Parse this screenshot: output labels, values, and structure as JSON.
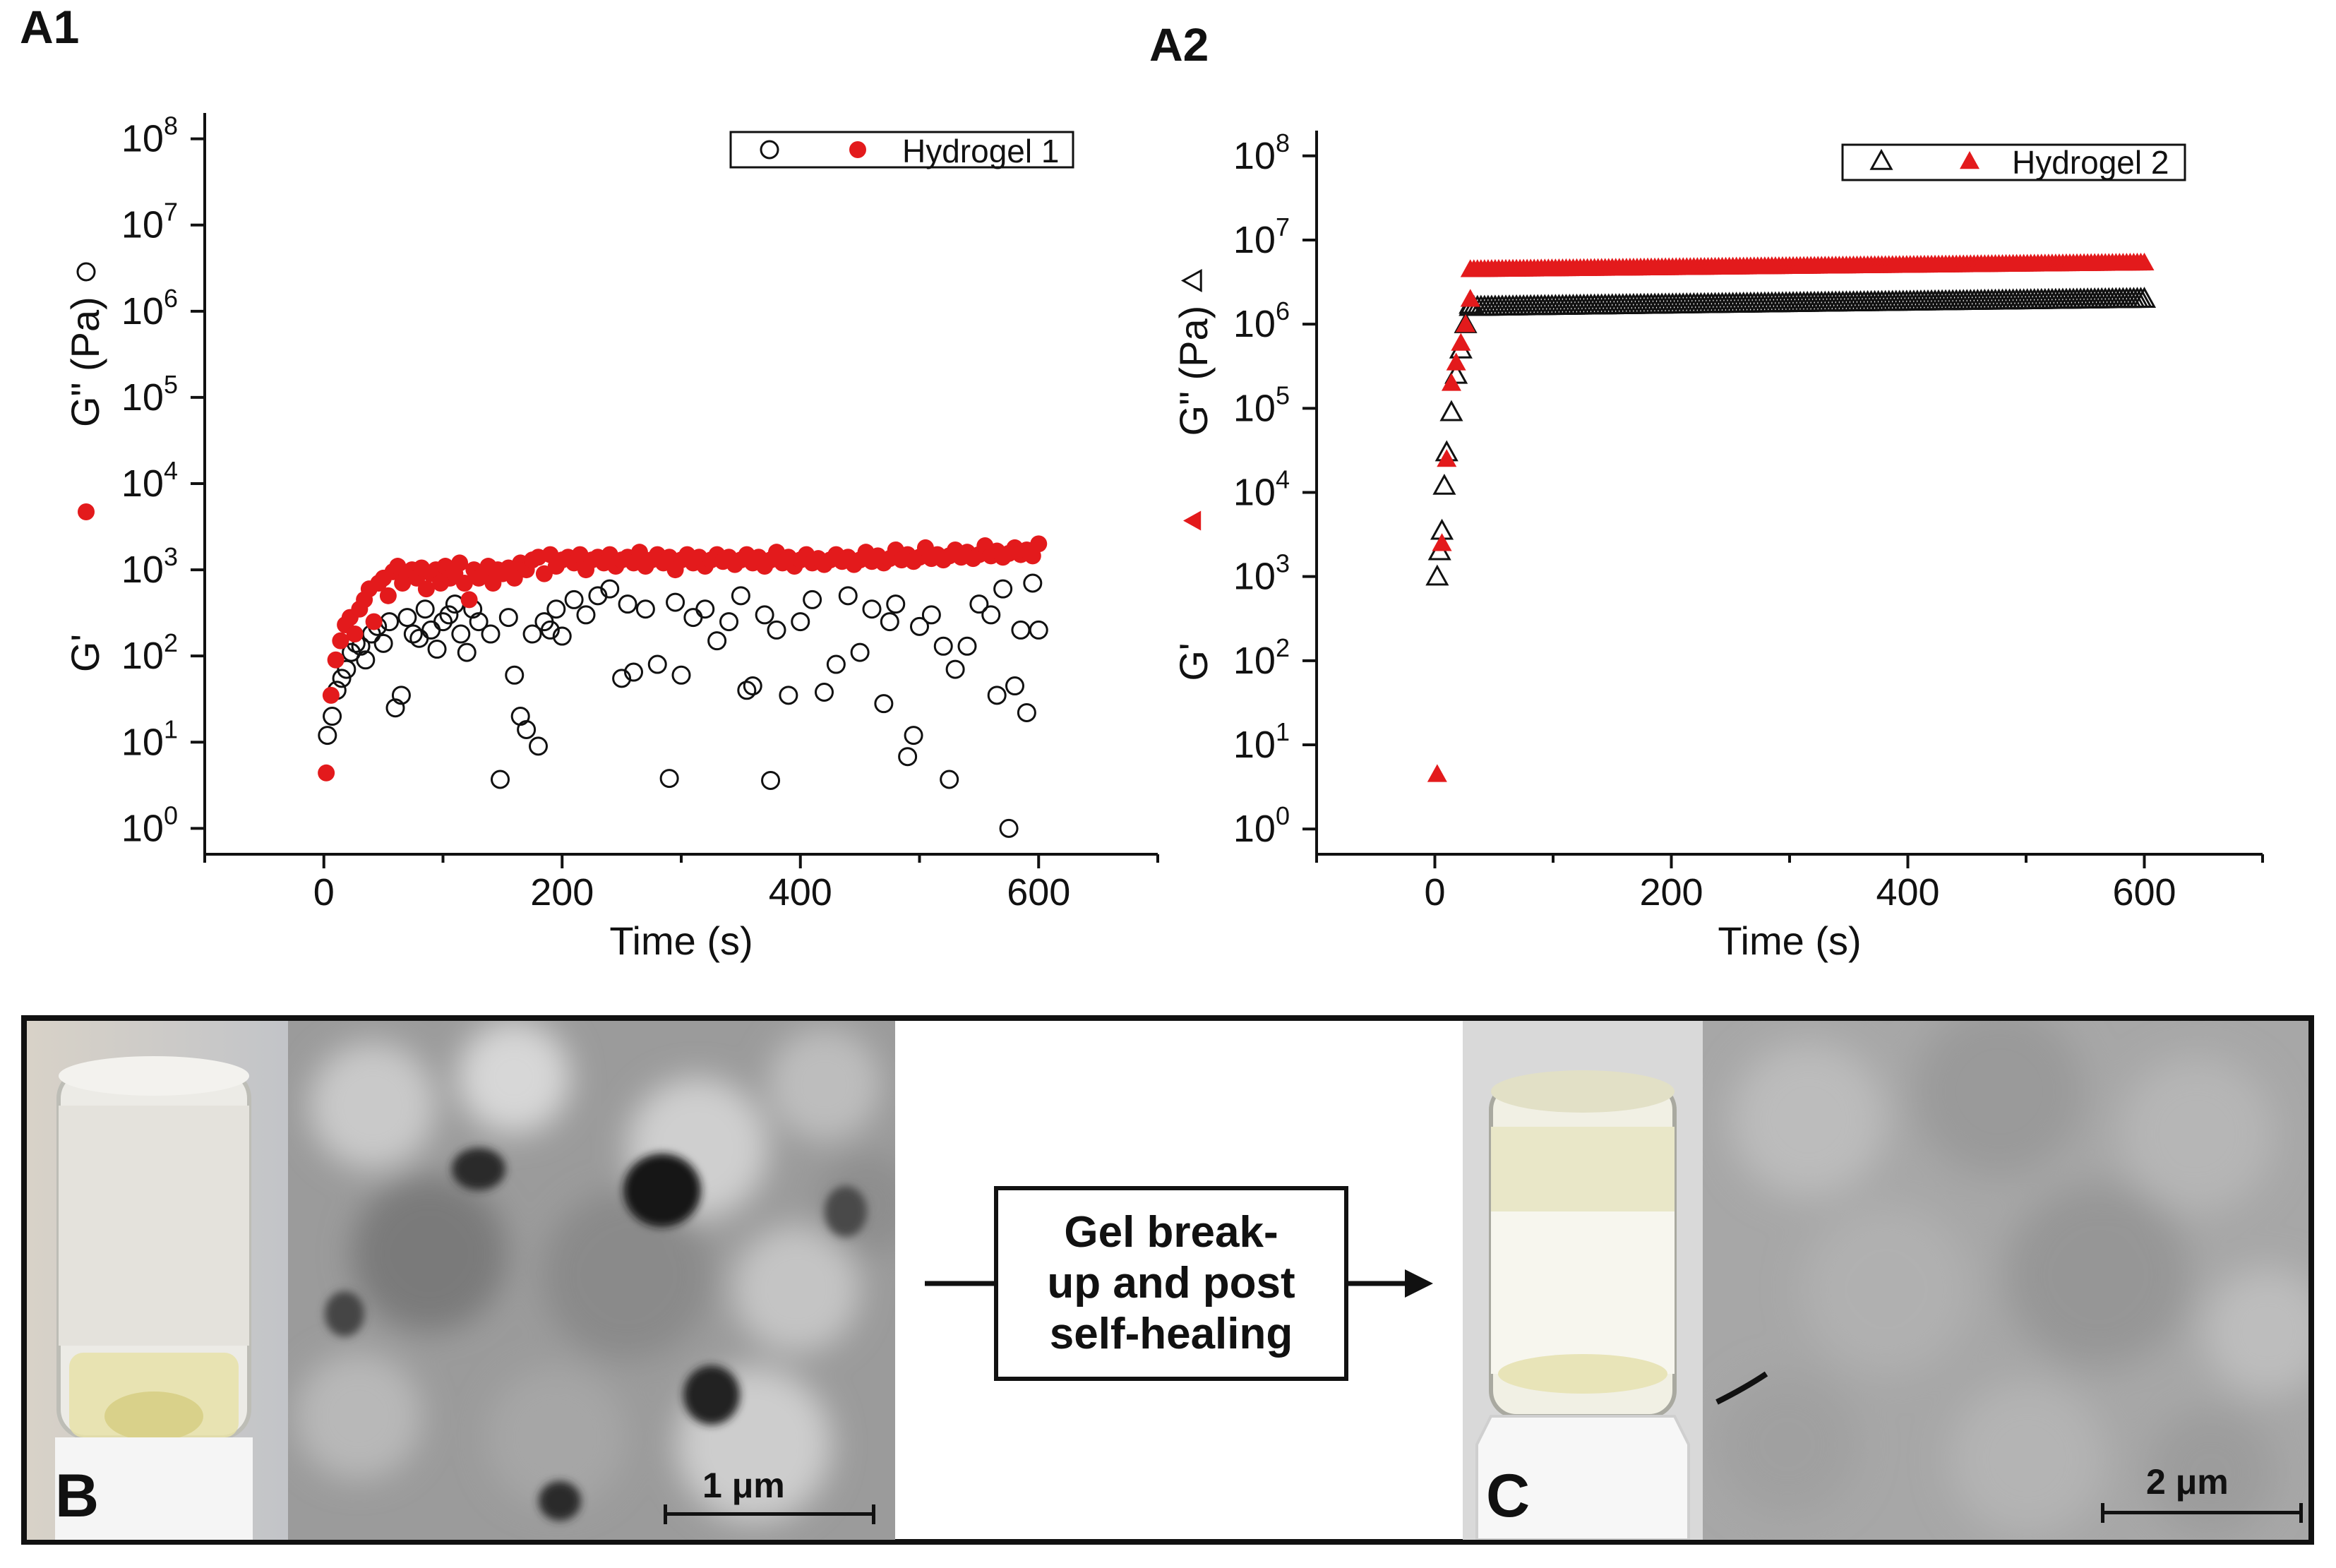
{
  "panels": {
    "a1": "A1",
    "a2": "A2",
    "b": "B",
    "c": "C"
  },
  "chart_data": [
    {
      "id": "A1",
      "type": "scatter",
      "xlabel": "Time (s)",
      "ylabel": "G'  ●  G\" (Pa)",
      "ylabel_parts": [
        "G'",
        "G\" (Pa)"
      ],
      "xlim": [
        -100,
        700
      ],
      "ylim_log10": [
        -0.3,
        8.3
      ],
      "y_scale": "log",
      "x_ticks": [
        0,
        200,
        400,
        600
      ],
      "y_ticks": [
        "10^0",
        "10^1",
        "10^2",
        "10^3",
        "10^4",
        "10^5",
        "10^6",
        "10^7",
        "10^8"
      ],
      "legend": {
        "label": "Hydrogel 1",
        "placement": "top-right"
      },
      "series": [
        {
          "name": "G'",
          "marker": "filled-circle",
          "color": "#e31a1c",
          "x": [
            2,
            6,
            10,
            14,
            18,
            22,
            26,
            30,
            34,
            38,
            42,
            46,
            50,
            54,
            58,
            62,
            66,
            70,
            74,
            78,
            82,
            86,
            90,
            94,
            98,
            102,
            106,
            110,
            114,
            118,
            122,
            126,
            130,
            134,
            138,
            142,
            146,
            150,
            155,
            160,
            165,
            170,
            175,
            180,
            185,
            190,
            195,
            200,
            205,
            210,
            215,
            220,
            225,
            230,
            235,
            240,
            245,
            250,
            255,
            260,
            265,
            270,
            275,
            280,
            285,
            290,
            295,
            300,
            305,
            310,
            315,
            320,
            325,
            330,
            335,
            340,
            345,
            350,
            355,
            360,
            365,
            370,
            375,
            380,
            385,
            390,
            395,
            400,
            405,
            410,
            415,
            420,
            425,
            430,
            435,
            440,
            445,
            450,
            455,
            460,
            465,
            470,
            475,
            480,
            485,
            490,
            495,
            500,
            505,
            510,
            515,
            520,
            525,
            530,
            535,
            540,
            545,
            550,
            555,
            560,
            565,
            570,
            575,
            580,
            585,
            590,
            595,
            600
          ],
          "y": [
            4.4,
            35,
            90,
            150,
            230,
            280,
            180,
            350,
            450,
            600,
            250,
            700,
            800,
            500,
            950,
            1100,
            700,
            900,
            1000,
            800,
            1050,
            600,
            900,
            1000,
            700,
            1100,
            800,
            900,
            1200,
            700,
            450,
            1000,
            800,
            900,
            1100,
            700,
            1000,
            900,
            1050,
            800,
            1200,
            1000,
            1300,
            1400,
            900,
            1500,
            1100,
            1300,
            1400,
            1200,
            1500,
            1000,
            1300,
            1400,
            1200,
            1500,
            1100,
            1300,
            1400,
            1200,
            1600,
            1100,
            1300,
            1500,
            1200,
            1400,
            1000,
            1300,
            1500,
            1200,
            1400,
            1100,
            1300,
            1500,
            1250,
            1400,
            1150,
            1300,
            1500,
            1200,
            1400,
            1100,
            1300,
            1600,
            1200,
            1400,
            1100,
            1300,
            1500,
            1200,
            1350,
            1150,
            1300,
            1500,
            1250,
            1400,
            1150,
            1300,
            1600,
            1250,
            1450,
            1200,
            1350,
            1700,
            1300,
            1500,
            1250,
            1400,
            1800,
            1350,
            1500,
            1300,
            1450,
            1700,
            1400,
            1600,
            1350,
            1500,
            1900,
            1450,
            1650,
            1400,
            1550,
            1800,
            1500,
            1700,
            1450,
            2000
          ]
        },
        {
          "name": "G\"",
          "marker": "open-circle",
          "color": "#111111",
          "x": [
            3,
            7,
            11,
            15,
            19,
            23,
            27,
            31,
            35,
            40,
            45,
            50,
            55,
            60,
            65,
            70,
            75,
            80,
            85,
            90,
            95,
            100,
            105,
            110,
            115,
            120,
            125,
            130,
            140,
            148,
            155,
            160,
            165,
            170,
            175,
            180,
            185,
            190,
            195,
            200,
            210,
            220,
            230,
            240,
            250,
            255,
            260,
            270,
            280,
            290,
            295,
            300,
            310,
            320,
            330,
            340,
            350,
            355,
            360,
            370,
            375,
            380,
            390,
            400,
            410,
            420,
            430,
            440,
            450,
            460,
            470,
            475,
            480,
            490,
            495,
            500,
            510,
            520,
            525,
            530,
            540,
            550,
            560,
            565,
            570,
            575,
            580,
            585,
            590,
            595,
            600
          ],
          "y": [
            12,
            20,
            40,
            55,
            70,
            110,
            140,
            130,
            90,
            180,
            220,
            140,
            250,
            25,
            35,
            280,
            180,
            160,
            350,
            200,
            120,
            250,
            300,
            400,
            180,
            110,
            350,
            250,
            180,
            3.7,
            280,
            60,
            20,
            14,
            180,
            9,
            250,
            200,
            350,
            170,
            450,
            300,
            500,
            600,
            55,
            400,
            65,
            350,
            80,
            3.8,
            420,
            60,
            280,
            350,
            150,
            250,
            500,
            40,
            45,
            300,
            3.6,
            200,
            35,
            250,
            450,
            38,
            80,
            500,
            110,
            350,
            28,
            250,
            400,
            6.8,
            12,
            220,
            300,
            130,
            3.7,
            70,
            130,
            400,
            300,
            35,
            600,
            1.0,
            45,
            200,
            22,
            700,
            200
          ]
        }
      ]
    },
    {
      "id": "A2",
      "type": "scatter",
      "xlabel": "Time (s)",
      "ylabel": "G'  ▲  G\" (Pa)",
      "ylabel_parts": [
        "G'",
        "G\" (Pa)"
      ],
      "xlim": [
        -100,
        700
      ],
      "ylim_log10": [
        -0.3,
        8.3
      ],
      "y_scale": "log",
      "x_ticks": [
        0,
        200,
        400,
        600
      ],
      "y_ticks": [
        "10^0",
        "10^1",
        "10^2",
        "10^3",
        "10^4",
        "10^5",
        "10^6",
        "10^7",
        "10^8"
      ],
      "legend": {
        "label": "Hydrogel 2",
        "placement": "top-right"
      },
      "series": [
        {
          "name": "G'",
          "marker": "filled-triangle",
          "color": "#e31a1c",
          "x_early": [
            2,
            6,
            10,
            14,
            18,
            22,
            26,
            30
          ],
          "y_early": [
            4.5,
            2500,
            25000,
            200000,
            350000,
            600000,
            1000000,
            2000000
          ],
          "plateau": {
            "x_start": 30,
            "x_end": 600,
            "y_start": 4500000,
            "y_end": 5400000,
            "step": 3
          }
        },
        {
          "name": "G\"",
          "marker": "open-triangle",
          "color": "#111111",
          "x_early": [
            2,
            4,
            6,
            8,
            10,
            14,
            18,
            22,
            26,
            30
          ],
          "y_early": [
            1000,
            2000,
            3500,
            12000,
            30000,
            90000,
            250000,
            500000,
            1000000,
            1700000
          ],
          "plateau": {
            "x_start": 30,
            "x_end": 600,
            "y_start": 1600000,
            "y_end": 2000000,
            "step": 3
          }
        }
      ]
    }
  ],
  "photos": {
    "center_text": [
      "Gel break-",
      "up and post",
      "self-healing"
    ],
    "scale_b": "1 μm",
    "scale_c": "2 μm"
  }
}
